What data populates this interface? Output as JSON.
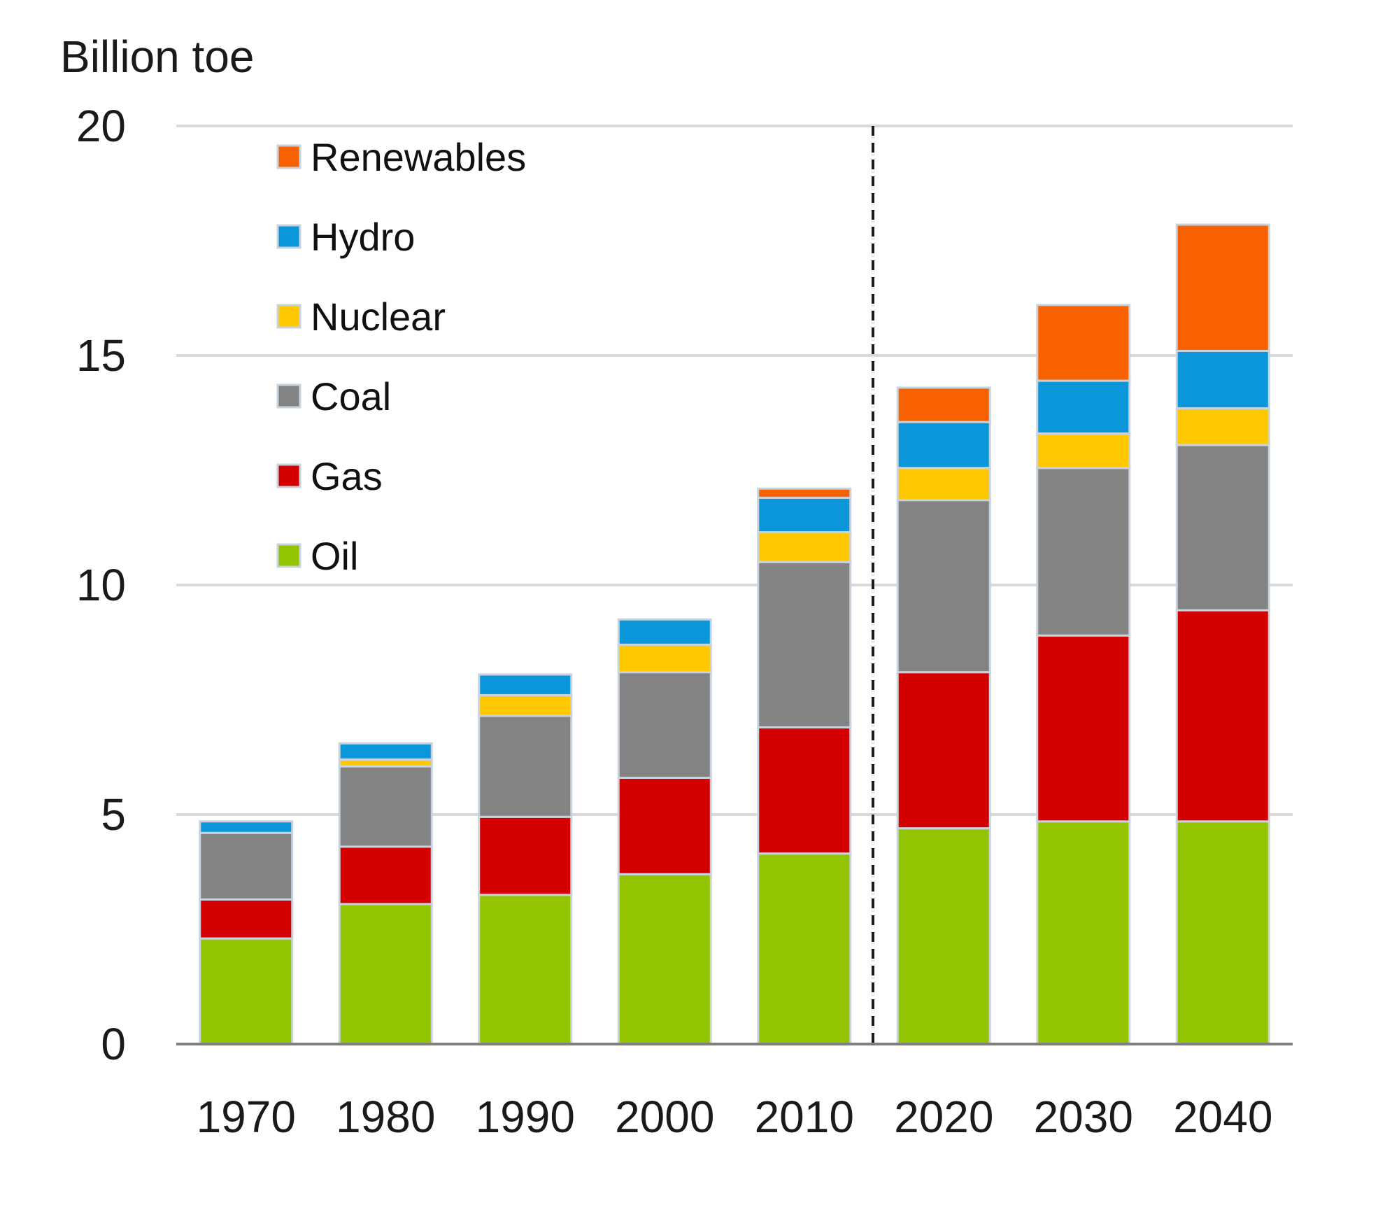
{
  "chart_data": {
    "type": "bar",
    "stacked": true,
    "title": "",
    "xlabel": "",
    "ylabel": "Billion toe",
    "ylim": [
      0,
      20
    ],
    "yticks": [
      0,
      5,
      10,
      15,
      20
    ],
    "grid": true,
    "legend_position": "top-left",
    "projection_divider_between": [
      "2010",
      "2020"
    ],
    "categories": [
      "1970",
      "1980",
      "1990",
      "2000",
      "2010",
      "2020",
      "2030",
      "2040"
    ],
    "series": [
      {
        "name": "Oil",
        "color": "#92c500",
        "values": [
          2.3,
          3.05,
          3.25,
          3.7,
          4.15,
          4.7,
          4.85,
          4.85
        ]
      },
      {
        "name": "Gas",
        "color": "#d40000",
        "values": [
          0.85,
          1.25,
          1.7,
          2.1,
          2.75,
          3.4,
          4.05,
          4.6
        ]
      },
      {
        "name": "Coal",
        "color": "#838383",
        "values": [
          1.45,
          1.75,
          2.2,
          2.3,
          3.6,
          3.75,
          3.65,
          3.6
        ]
      },
      {
        "name": "Nuclear",
        "color": "#ffc800",
        "values": [
          0.0,
          0.15,
          0.45,
          0.6,
          0.65,
          0.7,
          0.75,
          0.8
        ]
      },
      {
        "name": "Hydro",
        "color": "#0a96d8",
        "values": [
          0.25,
          0.35,
          0.45,
          0.55,
          0.75,
          1.0,
          1.15,
          1.25
        ]
      },
      {
        "name": "Renewables",
        "color": "#f86100",
        "values": [
          0.0,
          0.0,
          0.0,
          0.0,
          0.2,
          0.75,
          1.65,
          2.75
        ]
      }
    ]
  }
}
